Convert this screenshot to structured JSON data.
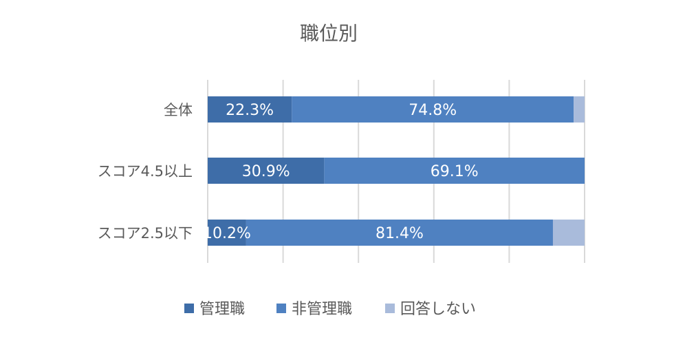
{
  "chart_data": {
    "type": "bar",
    "orientation": "horizontal",
    "stacked": true,
    "title": "職位別",
    "categories": [
      "全体",
      "スコア4.5以上",
      "スコア2.5以下"
    ],
    "series": [
      {
        "name": "管理職",
        "values": [
          22.3,
          30.9,
          10.2
        ],
        "labels": [
          "22.3%",
          "30.9%",
          "10.2%"
        ],
        "color": "#3e6da8"
      },
      {
        "name": "非管理職",
        "values": [
          74.8,
          69.1,
          81.4
        ],
        "labels": [
          "74.8%",
          "69.1%",
          "81.4%"
        ],
        "color": "#4f81c1"
      },
      {
        "name": "回答しない",
        "values": [
          2.9,
          0.0,
          8.4
        ],
        "labels": [
          "",
          "",
          ""
        ],
        "color": "#a9bbdb"
      }
    ],
    "xlim": [
      0,
      100
    ],
    "grid": true,
    "legend": "bottom"
  }
}
